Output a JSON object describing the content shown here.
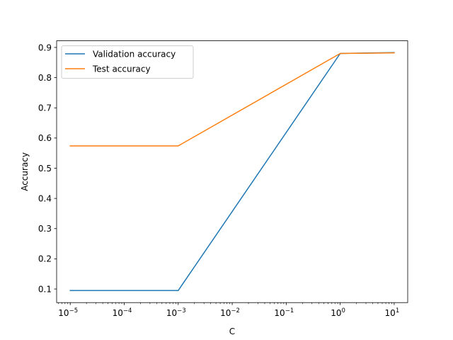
{
  "chart_data": {
    "type": "line",
    "xscale": "log",
    "xlabel": "C",
    "ylabel": "Accuracy",
    "xlim": [
      5.6e-06,
      17.8
    ],
    "ylim": [
      0.055,
      0.922
    ],
    "grid": false,
    "legend_position": "top-left",
    "x": [
      1e-05,
      0.001,
      1,
      10
    ],
    "x_ticks": [
      {
        "value": 1e-05,
        "base": "10",
        "exp": "−5"
      },
      {
        "value": 0.0001,
        "base": "10",
        "exp": "−4"
      },
      {
        "value": 0.001,
        "base": "10",
        "exp": "−3"
      },
      {
        "value": 0.01,
        "base": "10",
        "exp": "−2"
      },
      {
        "value": 0.1,
        "base": "10",
        "exp": "−1"
      },
      {
        "value": 1,
        "base": "10",
        "exp": "0"
      },
      {
        "value": 10,
        "base": "10",
        "exp": "1"
      }
    ],
    "y_ticks": [
      {
        "value": 0.1,
        "label": "0.1"
      },
      {
        "value": 0.2,
        "label": "0.2"
      },
      {
        "value": 0.3,
        "label": "0.3"
      },
      {
        "value": 0.4,
        "label": "0.4"
      },
      {
        "value": 0.5,
        "label": "0.5"
      },
      {
        "value": 0.6,
        "label": "0.6"
      },
      {
        "value": 0.7,
        "label": "0.7"
      },
      {
        "value": 0.8,
        "label": "0.8"
      },
      {
        "value": 0.9,
        "label": "0.9"
      }
    ],
    "series": [
      {
        "name": "Validation accuracy",
        "color": "#1f77b4",
        "values": [
          0.095,
          0.095,
          0.88,
          0.883
        ]
      },
      {
        "name": "Test accuracy",
        "color": "#ff7f0e",
        "values": [
          0.574,
          0.574,
          0.88,
          0.882
        ]
      }
    ]
  }
}
